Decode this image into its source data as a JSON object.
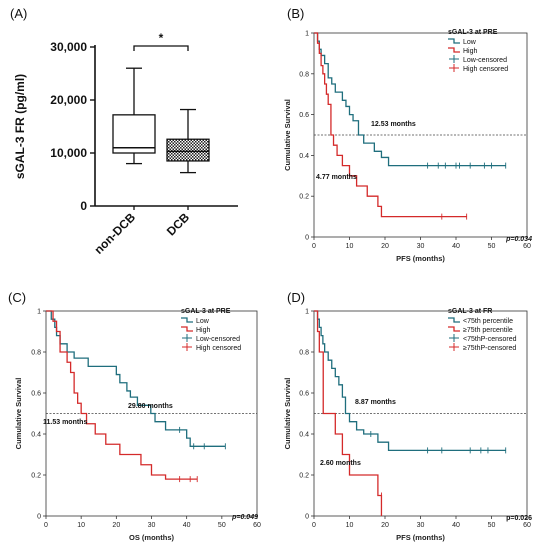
{
  "chart_data": [
    {
      "panel": "(A)",
      "type": "box",
      "ylabel": "sGAL-3 FR (pg/ml)",
      "ylim": [
        0,
        30000
      ],
      "yticks": [
        "0",
        "10,000",
        "20,000",
        "30,000"
      ],
      "ytick_values": [
        0,
        10000,
        20000,
        30000
      ],
      "categories": [
        "non-DCB",
        "DCB"
      ],
      "boxes": [
        {
          "name": "non-DCB",
          "whisker_low": 8000,
          "q1": 10000,
          "median": 11000,
          "q3": 17200,
          "whisker_high": 26000,
          "fill": "#ffffff"
        },
        {
          "name": "DCB",
          "whisker_low": 6300,
          "q1": 8500,
          "median": 10300,
          "q3": 12600,
          "whisker_high": 18200,
          "fill": "hatched"
        }
      ],
      "significance": "*"
    },
    {
      "panel": "(B)",
      "type": "line",
      "title": "",
      "xlabel": "PFS (months)",
      "ylabel": "Cumulative Survival",
      "xlim": [
        0,
        60
      ],
      "ylim": [
        0,
        1
      ],
      "xticks": [
        "0",
        "10",
        "20",
        "30",
        "40",
        "50",
        "60"
      ],
      "xtick_values": [
        0,
        10,
        20,
        30,
        40,
        50,
        60
      ],
      "yticks": [
        "0",
        "0.2",
        "0.4",
        "0.6",
        "0.8",
        "1"
      ],
      "ytick_values": [
        0,
        0.2,
        0.4,
        0.6,
        0.8,
        1
      ],
      "legend_title": "sGAL-3 at PRE",
      "legend_position": "top-right",
      "legend": [
        "Low",
        "High",
        "Low-censored",
        "High censored"
      ],
      "median_line": 0.5,
      "annotations": [
        {
          "text": "12.53 months",
          "x": 12.53,
          "y": 0.5
        },
        {
          "text": "4.77 months",
          "x": 4.77,
          "y": 0.5
        }
      ],
      "pvalue": "p=0.034",
      "pvalue_italic": true,
      "series": [
        {
          "name": "Low",
          "color": "#1f6e7d",
          "steps": [
            [
              0,
              1
            ],
            [
              1,
              0.96
            ],
            [
              1.5,
              0.92
            ],
            [
              2,
              0.89
            ],
            [
              3,
              0.85
            ],
            [
              4,
              0.78
            ],
            [
              5,
              0.75
            ],
            [
              6,
              0.71
            ],
            [
              8,
              0.67
            ],
            [
              9,
              0.64
            ],
            [
              10,
              0.6
            ],
            [
              11,
              0.57
            ],
            [
              12.53,
              0.5
            ],
            [
              14,
              0.46
            ],
            [
              17,
              0.42
            ],
            [
              19,
              0.39
            ],
            [
              21,
              0.35
            ],
            [
              54,
              0.35
            ]
          ],
          "censored": [
            [
              32,
              0.35
            ],
            [
              35,
              0.35
            ],
            [
              37,
              0.35
            ],
            [
              40,
              0.35
            ],
            [
              41,
              0.35
            ],
            [
              44,
              0.35
            ],
            [
              48,
              0.35
            ],
            [
              50,
              0.35
            ],
            [
              54,
              0.35
            ]
          ]
        },
        {
          "name": "High",
          "color": "#d42a2a",
          "steps": [
            [
              0,
              1
            ],
            [
              1,
              0.95
            ],
            [
              1.5,
              0.9
            ],
            [
              2,
              0.84
            ],
            [
              2.5,
              0.8
            ],
            [
              3,
              0.75
            ],
            [
              3.5,
              0.7
            ],
            [
              4,
              0.65
            ],
            [
              4.77,
              0.5
            ],
            [
              5.5,
              0.45
            ],
            [
              6.5,
              0.4
            ],
            [
              8,
              0.35
            ],
            [
              10,
              0.3
            ],
            [
              12,
              0.25
            ],
            [
              15,
              0.2
            ],
            [
              18,
              0.15
            ],
            [
              19,
              0.1
            ],
            [
              43,
              0.1
            ]
          ],
          "censored": [
            [
              36,
              0.1
            ],
            [
              43,
              0.1
            ]
          ]
        }
      ]
    },
    {
      "panel": "(C)",
      "type": "line",
      "xlabel": "OS (months)",
      "ylabel": "Cumulative Survival",
      "xlim": [
        0,
        60
      ],
      "ylim": [
        0,
        1
      ],
      "xticks": [
        "0",
        "10",
        "20",
        "30",
        "40",
        "50",
        "60"
      ],
      "xtick_values": [
        0,
        10,
        20,
        30,
        40,
        50,
        60
      ],
      "yticks": [
        "0",
        "0.2",
        "0.4",
        "0.6",
        "0.8",
        "1"
      ],
      "ytick_values": [
        0,
        0.2,
        0.4,
        0.6,
        0.8,
        1
      ],
      "legend_title": "sGAL-3 at PRE",
      "legend_position": "top-right",
      "legend": [
        "Low",
        "High",
        "Low-censored",
        "High censored"
      ],
      "median_line": 0.5,
      "annotations": [
        {
          "text": "29.80 months",
          "x": 29.8,
          "y": 0.5
        },
        {
          "text": "11.53 months",
          "x": 11.53,
          "y": 0.5
        }
      ],
      "pvalue": "p=0.049",
      "pvalue_italic": true,
      "series": [
        {
          "name": "Low",
          "color": "#1f6e7d",
          "steps": [
            [
              0,
              1
            ],
            [
              1.5,
              0.96
            ],
            [
              2.5,
              0.92
            ],
            [
              3,
              0.88
            ],
            [
              4,
              0.84
            ],
            [
              6,
              0.8
            ],
            [
              8,
              0.77
            ],
            [
              12,
              0.73
            ],
            [
              20,
              0.69
            ],
            [
              21,
              0.65
            ],
            [
              23,
              0.61
            ],
            [
              24,
              0.58
            ],
            [
              26,
              0.54
            ],
            [
              29.8,
              0.5
            ],
            [
              31,
              0.46
            ],
            [
              34,
              0.42
            ],
            [
              40,
              0.38
            ],
            [
              41,
              0.34
            ],
            [
              51,
              0.34
            ]
          ],
          "censored": [
            [
              38,
              0.42
            ],
            [
              42,
              0.34
            ],
            [
              45,
              0.34
            ],
            [
              51,
              0.34
            ]
          ]
        },
        {
          "name": "High",
          "color": "#d42a2a",
          "steps": [
            [
              0,
              1
            ],
            [
              2,
              0.95
            ],
            [
              3,
              0.9
            ],
            [
              4,
              0.8
            ],
            [
              6,
              0.75
            ],
            [
              7,
              0.7
            ],
            [
              8,
              0.6
            ],
            [
              9,
              0.55
            ],
            [
              10,
              0.5
            ],
            [
              11.53,
              0.45
            ],
            [
              14,
              0.4
            ],
            [
              17,
              0.35
            ],
            [
              21,
              0.3
            ],
            [
              27,
              0.25
            ],
            [
              30,
              0.2
            ],
            [
              34,
              0.18
            ],
            [
              43,
              0.18
            ]
          ],
          "censored": [
            [
              38,
              0.18
            ],
            [
              41,
              0.18
            ],
            [
              43,
              0.18
            ]
          ]
        }
      ]
    },
    {
      "panel": "(D)",
      "type": "line",
      "xlabel": "PFS (months)",
      "ylabel": "Cumulative Survival",
      "xlim": [
        0,
        60
      ],
      "ylim": [
        0,
        1
      ],
      "xticks": [
        "0",
        "10",
        "20",
        "30",
        "40",
        "50",
        "60"
      ],
      "xtick_values": [
        0,
        10,
        20,
        30,
        40,
        50,
        60
      ],
      "yticks": [
        "0",
        "0.2",
        "0.4",
        "0.6",
        "0.8",
        "1"
      ],
      "ytick_values": [
        0,
        0.2,
        0.4,
        0.6,
        0.8,
        1
      ],
      "legend_title": "sGAL-3 at FR",
      "legend_position": "top-right",
      "legend": [
        "<75th percentile",
        "≥75th percentile",
        "<75thP-censored",
        "≥75thP-censored"
      ],
      "median_line": 0.5,
      "annotations": [
        {
          "text": "8.87 months",
          "x": 8.87,
          "y": 0.5
        },
        {
          "text": "2.60 months",
          "x": 2.6,
          "y": 0.5
        }
      ],
      "pvalue": "p=0.026",
      "pvalue_italic": false,
      "series": [
        {
          "name": "<75th percentile",
          "color": "#1f6e7d",
          "steps": [
            [
              0,
              1
            ],
            [
              1,
              0.96
            ],
            [
              1.5,
              0.92
            ],
            [
              2,
              0.88
            ],
            [
              2.5,
              0.84
            ],
            [
              3,
              0.8
            ],
            [
              4,
              0.76
            ],
            [
              5,
              0.72
            ],
            [
              6,
              0.68
            ],
            [
              7,
              0.64
            ],
            [
              8,
              0.58
            ],
            [
              8.87,
              0.5
            ],
            [
              10,
              0.46
            ],
            [
              12,
              0.42
            ],
            [
              14,
              0.4
            ],
            [
              18,
              0.36
            ],
            [
              21,
              0.32
            ],
            [
              54,
              0.32
            ]
          ],
          "censored": [
            [
              16,
              0.4
            ],
            [
              32,
              0.32
            ],
            [
              36,
              0.32
            ],
            [
              44,
              0.32
            ],
            [
              47,
              0.32
            ],
            [
              49,
              0.32
            ],
            [
              54,
              0.32
            ]
          ]
        },
        {
          "name": "≥75th percentile",
          "color": "#d42a2a",
          "steps": [
            [
              0,
              1
            ],
            [
              1,
              0.9
            ],
            [
              1.5,
              0.8
            ],
            [
              2.6,
              0.5
            ],
            [
              6,
              0.4
            ],
            [
              8,
              0.3
            ],
            [
              10,
              0.2
            ],
            [
              18,
              0.1
            ],
            [
              19,
              0
            ]
          ],
          "censored": [
            [
              19,
              0.1
            ]
          ]
        }
      ]
    }
  ]
}
